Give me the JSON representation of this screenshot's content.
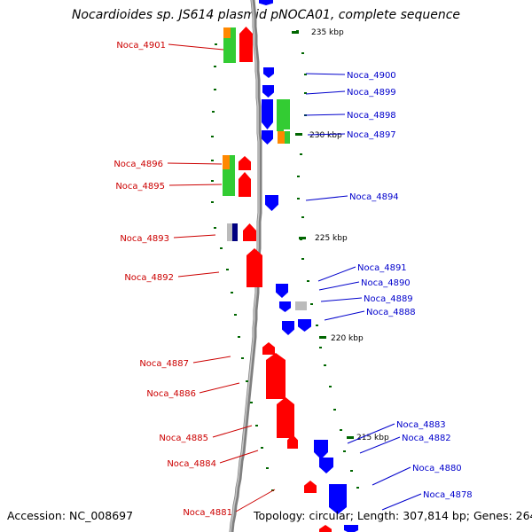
{
  "title": "Nocardioides sp. JS614 plasmid pNOCA01, complete sequence",
  "accession": "Accession: NC_008697",
  "topology": "Topology: circular; Length: 307,814 bp; Genes: 264",
  "colors": {
    "forward": "#ff0000",
    "reverse": "#0000ff",
    "green": "#33cc33",
    "orange": "#ff8800",
    "grey": "#bbbbbb",
    "navy": "#000080",
    "label_forward": "#cc0000",
    "label_reverse": "#0000cc",
    "tick": "#006600",
    "backbone": "#808080"
  },
  "kbp_marks": [
    "235 kbp",
    "230 kbp",
    "225 kbp",
    "220 kbp",
    "215 kbp"
  ],
  "left_labels": [
    "Noca_4901",
    "Noca_4896",
    "Noca_4895",
    "Noca_4893",
    "Noca_4892",
    "Noca_4887",
    "Noca_4886",
    "Noca_4885",
    "Noca_4884",
    "Noca_4881"
  ],
  "right_labels": [
    "Noca_4900",
    "Noca_4899",
    "Noca_4898",
    "Noca_4897",
    "Noca_4894",
    "Noca_4891",
    "Noca_4890",
    "Noca_4889",
    "Noca_4888",
    "Noca_4883",
    "Noca_4882",
    "Noca_4880",
    "Noca_4878"
  ]
}
